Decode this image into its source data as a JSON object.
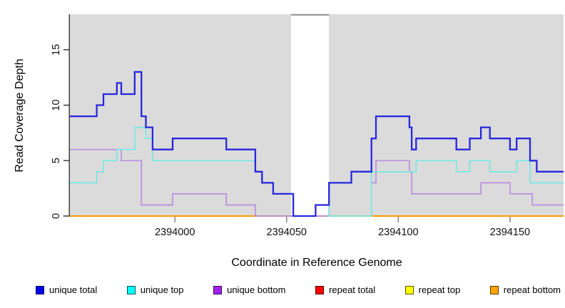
{
  "chart_data": {
    "type": "line",
    "subtype": "step",
    "title": "",
    "xlabel": "Coordinate in Reference Genome",
    "ylabel": "Read Coverage Depth",
    "xlim": [
      2393953,
      2394174
    ],
    "ylim": [
      0,
      18.2
    ],
    "x_ticks": [
      "2394000",
      "2394050",
      "2394100",
      "2394150"
    ],
    "x_tick_values": [
      2394000,
      2394050,
      2394100,
      2394150
    ],
    "y_ticks": [
      "0",
      "5",
      "10",
      "15"
    ],
    "y_tick_values": [
      0,
      5,
      10,
      15
    ],
    "grid": false,
    "plot_background": "#DBDBDB",
    "highlight_band": {
      "from": 2394052,
      "to": 2394069,
      "color": "#FFFFFF",
      "top_border_color": "#8C8C8C"
    },
    "legend_position": "bottom",
    "legend": [
      {
        "label": "unique total",
        "color": "#0000EE"
      },
      {
        "label": "unique top",
        "color": "#00FFFF"
      },
      {
        "label": "unique bottom",
        "color": "#A020F0"
      },
      {
        "label": "repeat total",
        "color": "#FF0000"
      },
      {
        "label": "repeat top",
        "color": "#FFFF00"
      },
      {
        "label": "repeat bottom",
        "color": "#FFA500"
      }
    ],
    "series": [
      {
        "name": "repeat total",
        "line_color": "#DD0000",
        "line_width": 1.5,
        "points": [
          [
            2393953,
            0
          ]
        ]
      },
      {
        "name": "repeat top",
        "line_color": "#F5F500",
        "line_width": 1.5,
        "points": [
          [
            2393953,
            0
          ]
        ]
      },
      {
        "name": "repeat bottom",
        "line_color": "#FF9B00",
        "line_width": 2,
        "points": [
          [
            2393953,
            0
          ]
        ]
      },
      {
        "name": "unique bottom",
        "line_color": "#BB8EE0",
        "line_width": 1.7,
        "points": [
          [
            2393953,
            6
          ],
          [
            2393976,
            5
          ],
          [
            2393985,
            1
          ],
          [
            2393999,
            2
          ],
          [
            2394023,
            1
          ],
          [
            2394036,
            0
          ],
          [
            2394069,
            3
          ],
          [
            2394079,
            4
          ],
          [
            2394088,
            3
          ],
          [
            2394090,
            5
          ],
          [
            2394105,
            4
          ],
          [
            2394106,
            2
          ],
          [
            2394137,
            3
          ],
          [
            2394150,
            2
          ],
          [
            2394160,
            1
          ]
        ]
      },
      {
        "name": "unique top",
        "line_color": "#74E8E4",
        "line_width": 1.7,
        "points": [
          [
            2393953,
            3
          ],
          [
            2393965,
            4
          ],
          [
            2393968,
            5
          ],
          [
            2393974,
            6
          ],
          [
            2393982,
            8
          ],
          [
            2393987,
            7
          ],
          [
            2393990,
            5
          ],
          [
            2394036,
            4
          ],
          [
            2394039,
            3
          ],
          [
            2394044,
            2
          ],
          [
            2394053,
            0
          ],
          [
            2394063,
            1
          ],
          [
            2394069,
            0
          ],
          [
            2394088,
            4
          ],
          [
            2394108,
            5
          ],
          [
            2394126,
            4
          ],
          [
            2394132,
            5
          ],
          [
            2394141,
            4
          ],
          [
            2394153,
            5
          ],
          [
            2394159,
            3
          ]
        ]
      },
      {
        "name": "unique total",
        "line_color": "#2727DE",
        "line_width": 2.3,
        "points": [
          [
            2393953,
            9
          ],
          [
            2393965,
            10
          ],
          [
            2393968,
            11
          ],
          [
            2393974,
            12
          ],
          [
            2393976,
            11
          ],
          [
            2393982,
            13
          ],
          [
            2393985,
            9
          ],
          [
            2393987,
            8
          ],
          [
            2393990,
            6
          ],
          [
            2393999,
            7
          ],
          [
            2394023,
            6
          ],
          [
            2394036,
            4
          ],
          [
            2394039,
            3
          ],
          [
            2394044,
            2
          ],
          [
            2394053,
            0
          ],
          [
            2394063,
            1
          ],
          [
            2394069,
            3
          ],
          [
            2394079,
            4
          ],
          [
            2394088,
            7
          ],
          [
            2394090,
            9
          ],
          [
            2394105,
            8
          ],
          [
            2394106,
            6
          ],
          [
            2394108,
            7
          ],
          [
            2394126,
            6
          ],
          [
            2394132,
            7
          ],
          [
            2394137,
            8
          ],
          [
            2394141,
            7
          ],
          [
            2394150,
            6
          ],
          [
            2394153,
            7
          ],
          [
            2394159,
            5
          ],
          [
            2394162,
            4
          ]
        ]
      }
    ],
    "axis_colors": {
      "y_axis": "#333333",
      "x_tick": "#8A8A8A",
      "tick_label": "#111111"
    }
  }
}
